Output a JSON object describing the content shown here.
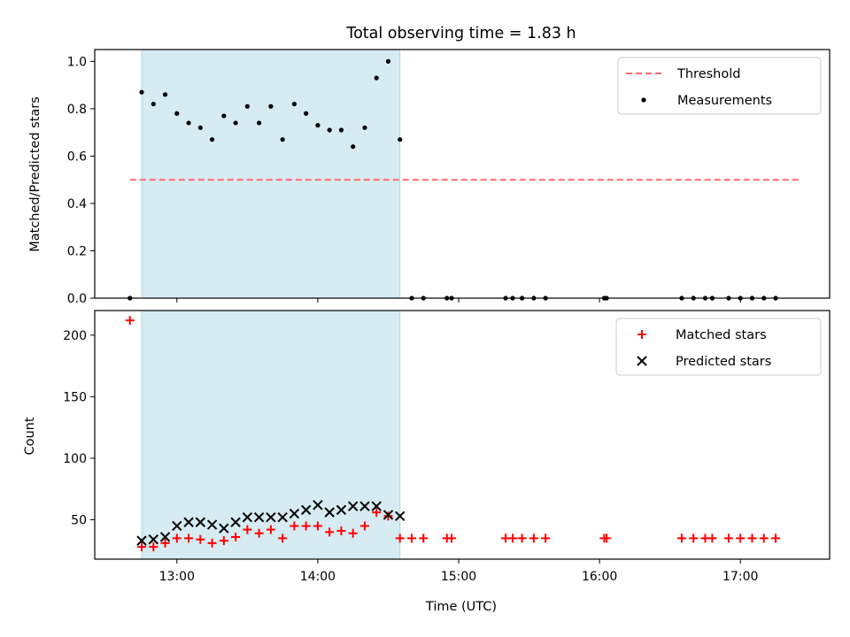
{
  "title": "Total observing time = 1.83 h",
  "xlabel": "Time (UTC)",
  "colors": {
    "shade": "#add8e6",
    "threshold": "#ff6b6b",
    "matched": "#ff0000",
    "predicted": "#000000",
    "measurement": "#000000"
  },
  "chart_data": [
    {
      "type": "scatter",
      "ylabel": "Matched/Predicted stars",
      "ylim": [
        0,
        1.05
      ],
      "yticks": [
        0.0,
        0.2,
        0.4,
        0.6,
        0.8,
        1.0
      ],
      "ytick_labels": [
        "0.0",
        "0.2",
        "0.4",
        "0.6",
        "0.8",
        "1.0"
      ],
      "xlim": [
        "12:25",
        "17:38"
      ],
      "grid": false,
      "legend": {
        "position": "top-right",
        "entries": [
          "Threshold",
          "Measurements"
        ]
      },
      "observing_window": [
        "12:45",
        "14:35"
      ],
      "threshold": {
        "name": "Threshold",
        "value": 0.5,
        "x_range": [
          "12:40",
          "17:25"
        ]
      },
      "series": [
        {
          "name": "Measurements",
          "x": [
            "12:40",
            "12:45",
            "12:50",
            "12:55",
            "13:00",
            "13:05",
            "13:10",
            "13:15",
            "13:20",
            "13:25",
            "13:30",
            "13:35",
            "13:40",
            "13:45",
            "13:50",
            "13:55",
            "14:00",
            "14:05",
            "14:10",
            "14:15",
            "14:20",
            "14:25",
            "14:30",
            "14:35",
            "14:40",
            "14:45",
            "14:55",
            "14:57",
            "15:20",
            "15:23",
            "15:27",
            "15:32",
            "15:37",
            "16:02",
            "16:03",
            "16:35",
            "16:40",
            "16:45",
            "16:48",
            "16:55",
            "17:00",
            "17:05",
            "17:10",
            "17:15"
          ],
          "y": [
            0.0,
            0.87,
            0.82,
            0.86,
            0.78,
            0.74,
            0.72,
            0.67,
            0.77,
            0.74,
            0.81,
            0.74,
            0.81,
            0.67,
            0.82,
            0.78,
            0.73,
            0.71,
            0.71,
            0.64,
            0.72,
            0.93,
            1.0,
            0.67,
            0.0,
            0.0,
            0.0,
            0.0,
            0.0,
            0.0,
            0.0,
            0.0,
            0.0,
            0.0,
            0.0,
            0.0,
            0.0,
            0.0,
            0.0,
            0.0,
            0.0,
            0.0,
            0.0,
            0.0
          ]
        }
      ]
    },
    {
      "type": "scatter",
      "ylabel": "Count",
      "ylim": [
        18,
        220
      ],
      "yticks": [
        50,
        100,
        150,
        200
      ],
      "ytick_labels": [
        "50",
        "100",
        "150",
        "200"
      ],
      "xticks": [
        "13:00",
        "14:00",
        "15:00",
        "16:00",
        "17:00"
      ],
      "grid": false,
      "legend": {
        "position": "top-right",
        "entries": [
          "Matched stars",
          "Predicted stars"
        ]
      },
      "observing_window": [
        "12:45",
        "14:35"
      ],
      "series": [
        {
          "name": "Matched stars",
          "marker": "+",
          "x": [
            "12:40",
            "12:45",
            "12:50",
            "12:55",
            "13:00",
            "13:05",
            "13:10",
            "13:15",
            "13:20",
            "13:25",
            "13:30",
            "13:35",
            "13:40",
            "13:45",
            "13:50",
            "13:55",
            "14:00",
            "14:05",
            "14:10",
            "14:15",
            "14:20",
            "14:25",
            "14:30",
            "14:35",
            "14:40",
            "14:45",
            "14:55",
            "14:57",
            "15:20",
            "15:23",
            "15:27",
            "15:32",
            "15:37",
            "16:02",
            "16:03",
            "16:35",
            "16:40",
            "16:45",
            "16:48",
            "16:55",
            "17:00",
            "17:05",
            "17:10",
            "17:15"
          ],
          "y": [
            212,
            28,
            28,
            31,
            35,
            35,
            34,
            31,
            33,
            36,
            42,
            39,
            42,
            35,
            45,
            45,
            45,
            40,
            41,
            39,
            45,
            56,
            53,
            35,
            35,
            35,
            35,
            35,
            35,
            35,
            35,
            35,
            35,
            35,
            35,
            35,
            35,
            35,
            35,
            35,
            35,
            35,
            35,
            35
          ]
        },
        {
          "name": "Predicted stars",
          "marker": "x",
          "x": [
            "12:45",
            "12:50",
            "12:55",
            "13:00",
            "13:05",
            "13:10",
            "13:15",
            "13:20",
            "13:25",
            "13:30",
            "13:35",
            "13:40",
            "13:45",
            "13:50",
            "13:55",
            "14:00",
            "14:05",
            "14:10",
            "14:15",
            "14:20",
            "14:25",
            "14:30",
            "14:35"
          ],
          "y": [
            33,
            34,
            36,
            45,
            48,
            48,
            46,
            43,
            48,
            52,
            52,
            52,
            52,
            55,
            58,
            62,
            56,
            58,
            61,
            61,
            61,
            54,
            53
          ]
        }
      ]
    }
  ]
}
